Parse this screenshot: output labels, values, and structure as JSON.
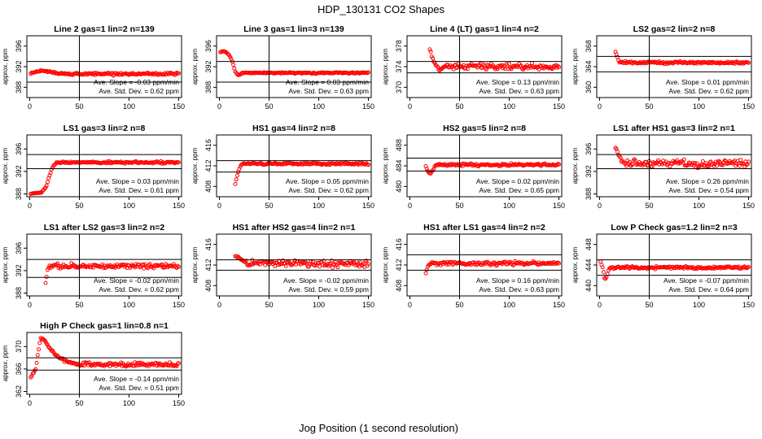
{
  "figure": {
    "title": "HDP_130131  CO2 Shapes",
    "xlabel": "Jog Position (1 second resolution)"
  },
  "colors": {
    "points": "#ff0000",
    "axes": "#000000",
    "background": "#ffffff"
  },
  "chart_data": [
    {
      "type": "scatter",
      "title": "Line 2 gas=1 lin=2 n=139",
      "ylabel": "approx. ppm",
      "xlim": [
        0,
        150
      ],
      "ylim": [
        386,
        398
      ],
      "yticks": [
        388,
        392,
        396
      ],
      "xticks": [
        0,
        50,
        100,
        150
      ],
      "hlines": [
        393,
        389
      ],
      "vline": 50,
      "x_range": [
        1,
        150
      ],
      "base": 390.6,
      "noise": 0.2,
      "slope_in_plot": 0,
      "transient": {
        "type": "bump",
        "start": 1,
        "end": 30,
        "y": [
          390.6,
          391.2,
          391.0,
          390.6
        ]
      },
      "slope_label": "Ave. Slope = -0.03 ppm/min",
      "std_label": "Ave. Std. Dev. = 0.62 ppm"
    },
    {
      "type": "scatter",
      "title": "Line 3 gas=1 lin=3 n=139",
      "ylabel": "approx. ppm",
      "xlim": [
        0,
        150
      ],
      "ylim": [
        386,
        398
      ],
      "yticks": [
        388,
        392,
        396
      ],
      "xticks": [
        0,
        50,
        100,
        150
      ],
      "hlines": [
        393,
        389
      ],
      "vline": 50,
      "x_range": [
        1,
        150
      ],
      "base": 390.8,
      "noise": 0.12,
      "slope_in_plot": 0,
      "transient": {
        "type": "curve",
        "start": 1,
        "end": 22,
        "y": [
          394.9,
          395.0,
          394.8,
          394.2,
          393.0,
          391.0,
          390.3,
          390.6
        ]
      },
      "slope_label": "Ave. Slope = 0.03 ppm/min",
      "std_label": "Ave. Std. Dev. = 0.63 ppm"
    },
    {
      "type": "scatter",
      "title": "Line 4 (LT) gas=1 lin=4 n=2",
      "ylabel": "approx. ppm",
      "xlim": [
        0,
        150
      ],
      "ylim": [
        368,
        380
      ],
      "yticks": [
        370,
        374,
        378
      ],
      "xticks": [
        0,
        50,
        100,
        150
      ],
      "hlines": [
        375,
        372.8
      ],
      "vline": 50,
      "x_range": [
        20,
        150
      ],
      "base": 374,
      "noise": 0.45,
      "slope_in_plot": 0,
      "transient": {
        "type": "curve",
        "start": 20,
        "end": 35,
        "y": [
          377.5,
          375.8,
          374.8,
          374.0,
          373.4,
          373.5,
          374.0
        ]
      },
      "slope_label": "Ave. Slope = 0.13 ppm/min",
      "std_label": "Ave. Std. Dev. = 0.63 ppm"
    },
    {
      "type": "scatter",
      "title": "LS2 gas=2 lin=2 n=8",
      "ylabel": "approx. ppm",
      "xlim": [
        0,
        150
      ],
      "ylim": [
        358,
        370
      ],
      "yticks": [
        360,
        364,
        368
      ],
      "xticks": [
        0,
        50,
        100,
        150
      ],
      "hlines": [
        366,
        363
      ],
      "vline": 50,
      "x_range": [
        16,
        150
      ],
      "base": 364.8,
      "noise": 0.22,
      "slope_in_plot": 0,
      "transient": {
        "type": "curve",
        "start": 16,
        "end": 20,
        "y": [
          367,
          365.8,
          364.8
        ]
      },
      "slope_label": "Ave. Slope = 0.01 ppm/min",
      "std_label": "Ave. Std. Dev. = 0.62 ppm"
    },
    {
      "type": "scatter",
      "title": "LS1 gas=3 lin=2 n=8",
      "ylabel": "approx. ppm",
      "xlim": [
        0,
        150
      ],
      "ylim": [
        387.5,
        398.5
      ],
      "yticks": [
        388,
        392,
        396
      ],
      "xticks": [
        0,
        50,
        100,
        150
      ],
      "hlines": [
        395,
        392.5
      ],
      "vline": 50,
      "x_range": [
        1,
        150
      ],
      "base": 393.6,
      "noise": 0.15,
      "slope_in_plot": 0,
      "transient": {
        "type": "curve",
        "start": 1,
        "end": 28,
        "y": [
          388,
          388.1,
          388.2,
          388.4,
          389.2,
          391.5,
          393.2,
          393.6
        ]
      },
      "slope_label": "Ave. Slope = 0.03 ppm/min",
      "std_label": "Ave. Std. Dev. = 0.61 ppm"
    },
    {
      "type": "scatter",
      "title": "HS1 gas=4 lin=2 n=8",
      "ylabel": "approx. ppm",
      "xlim": [
        0,
        150
      ],
      "ylim": [
        406,
        418
      ],
      "yticks": [
        408,
        412,
        416
      ],
      "xticks": [
        0,
        50,
        100,
        150
      ],
      "hlines": [
        413,
        410.8
      ],
      "vline": 50,
      "x_range": [
        16,
        150
      ],
      "base": 412.4,
      "noise": 0.18,
      "slope_in_plot": 0,
      "transient": {
        "type": "curve",
        "start": 16,
        "end": 24,
        "y": [
          408.5,
          410.8,
          412.0,
          412.4
        ]
      },
      "slope_label": "Ave. Slope = 0.05 ppm/min",
      "std_label": "Ave. Std. Dev. = 0.62 ppm"
    },
    {
      "type": "scatter",
      "title": "HS2 gas=5 lin=2 n=8",
      "ylabel": "approx. ppm",
      "xlim": [
        0,
        150
      ],
      "ylim": [
        478,
        490
      ],
      "yticks": [
        480,
        484,
        488
      ],
      "xticks": [
        0,
        50,
        100,
        150
      ],
      "hlines": [
        485.5,
        483
      ],
      "vline": 50,
      "x_range": [
        16,
        150
      ],
      "base": 484.2,
      "noise": 0.2,
      "slope_in_plot": 0,
      "transient": {
        "type": "curve",
        "start": 16,
        "end": 28,
        "y": [
          484.0,
          482.8,
          482.5,
          483.2,
          484.0,
          484.2
        ]
      },
      "slope_label": "Ave. Slope = 0.02 ppm/min",
      "std_label": "Ave. Std. Dev. = 0.65 ppm"
    },
    {
      "type": "scatter",
      "title": "LS1 after HS1 gas=3 lin=2 n=1",
      "ylabel": "approx. ppm",
      "xlim": [
        0,
        150
      ],
      "ylim": [
        387.5,
        398.5
      ],
      "yticks": [
        388,
        392,
        396
      ],
      "xticks": [
        0,
        50,
        100,
        150
      ],
      "hlines": [
        395,
        392.5
      ],
      "vline": 50,
      "x_range": [
        16,
        150
      ],
      "base": 393.4,
      "noise": 0.6,
      "slope_in_plot": 0,
      "transient": {
        "type": "curve",
        "start": 16,
        "end": 24,
        "y": [
          396.5,
          394.5,
          393.6
        ]
      },
      "slope_label": "Ave. Slope = 0.26 ppm/min",
      "std_label": "Ave. Std. Dev. = 0.54 ppm"
    },
    {
      "type": "scatter",
      "title": "LS1 after LS2 gas=3 lin=2 n=2",
      "ylabel": "approx. ppm",
      "xlim": [
        0,
        150
      ],
      "ylim": [
        387.5,
        398.5
      ],
      "yticks": [
        388,
        392,
        396
      ],
      "xticks": [
        0,
        50,
        100,
        150
      ],
      "hlines": [
        394,
        390.8
      ],
      "vline": 50,
      "x_range": [
        16,
        150
      ],
      "base": 392.8,
      "noise": 0.35,
      "slope_in_plot": 0,
      "transient": {
        "type": "curve",
        "start": 16,
        "end": 20,
        "y": [
          389.8,
          392.2,
          392.8
        ]
      },
      "slope_label": "Ave. Slope = -0.02 ppm/min",
      "std_label": "Ave. Std. Dev. = 0.62 ppm"
    },
    {
      "type": "scatter",
      "title": "HS1 after HS2 gas=4 lin=2 n=1",
      "ylabel": "approx. ppm",
      "xlim": [
        0,
        150
      ],
      "ylim": [
        406,
        418
      ],
      "yticks": [
        408,
        412,
        416
      ],
      "xticks": [
        0,
        50,
        100,
        150
      ],
      "hlines": [
        413,
        411
      ],
      "vline": 50,
      "x_range": [
        16,
        150
      ],
      "base": 412.3,
      "noise": 0.55,
      "slope_in_plot": 0,
      "transient": {
        "type": "curve",
        "start": 16,
        "end": 26,
        "y": [
          413.8,
          413.4,
          413.0,
          412.6
        ]
      },
      "slope_label": "Ave. Slope = -0.02 ppm/min",
      "std_label": "Ave. Std. Dev. = 0.59 ppm"
    },
    {
      "type": "scatter",
      "title": "HS1 after LS1 gas=4 lin=2 n=2",
      "ylabel": "approx. ppm",
      "xlim": [
        0,
        150
      ],
      "ylim": [
        406,
        418
      ],
      "yticks": [
        408,
        412,
        416
      ],
      "xticks": [
        0,
        50,
        100,
        150
      ],
      "hlines": [
        414,
        411
      ],
      "vline": 50,
      "x_range": [
        16,
        150
      ],
      "base": 412.3,
      "noise": 0.3,
      "slope_in_plot": 0,
      "transient": {
        "type": "curve",
        "start": 16,
        "end": 20,
        "y": [
          410.5,
          411.8,
          412.3
        ]
      },
      "slope_label": "Ave. Slope = 0.16 ppm/min",
      "std_label": "Ave. Std. Dev. = 0.63 ppm"
    },
    {
      "type": "scatter",
      "title": "Low P Check gas=1.2 lin=2 n=3",
      "ylabel": "approx. ppm",
      "xlim": [
        0,
        150
      ],
      "ylim": [
        438,
        450
      ],
      "yticks": [
        440,
        444,
        448
      ],
      "xticks": [
        0,
        50,
        100,
        150
      ],
      "hlines": [
        445,
        442
      ],
      "vline": 50,
      "x_range": [
        1,
        150
      ],
      "base": 443.5,
      "noise": 0.22,
      "slope_in_plot": 0,
      "transient": {
        "type": "curve",
        "start": 1,
        "end": 12,
        "y": [
          444.8,
          443.5,
          441.0,
          442.0,
          443.4,
          443.5
        ]
      },
      "slope_label": "Ave. Slope = -0.07 ppm/min",
      "std_label": "Ave. Std. Dev. = 0.64 ppm"
    },
    {
      "type": "scatter",
      "title": "High P Check gas=1 lin=0.8 n=1",
      "ylabel": "approx. ppm",
      "xlim": [
        0,
        150
      ],
      "ylim": [
        361.5,
        372.5
      ],
      "yticks": [
        362,
        366,
        370
      ],
      "xticks": [
        0,
        50,
        100,
        150
      ],
      "hlines": [
        368,
        365.8
      ],
      "vline": 50,
      "x_range": [
        1,
        150
      ],
      "base": 366.8,
      "noise": 0.3,
      "slope_in_plot": 0,
      "transient": {
        "type": "curve",
        "start": 1,
        "end": 45,
        "y": [
          364.5,
          366.0,
          371.5,
          371.0,
          369.5,
          368.6,
          368.0,
          367.5,
          367.2,
          367.0
        ]
      },
      "slope_label": "Ave. Slope = -0.14 ppm/min",
      "std_label": "Ave. Std. Dev. = 0.51 ppm"
    }
  ]
}
